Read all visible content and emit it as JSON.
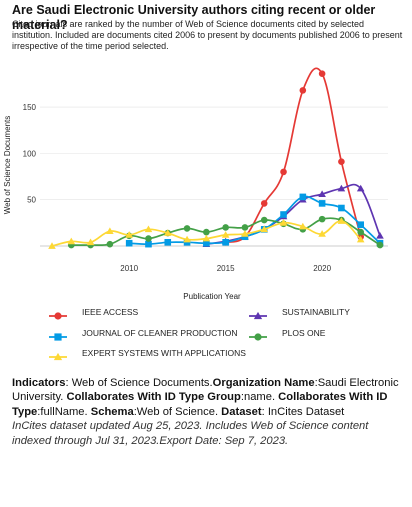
{
  "header": {
    "title": "Are Saudi Electronic University authors citing recent or older material?",
    "subtitle": "Cited journals are ranked by the number of Web of Science documents cited by selected institution. Included are documents cited 2006 to present by documents published 2006 to present irrespective of the time period selected."
  },
  "chart_data": {
    "type": "line",
    "xlabel": "Publication Year",
    "ylabel": "Web of Science Documents",
    "xlim": [
      2006,
      2023
    ],
    "ylim": [
      0,
      190
    ],
    "x_ticks": [
      2010,
      2015,
      2020
    ],
    "y_ticks": [
      50,
      100,
      150
    ],
    "grid": "horizontal",
    "legend_position": "bottom",
    "series": [
      {
        "name": "IEEE ACCESS",
        "color": "#e53935",
        "marker": "circle",
        "points": [
          [
            2015,
            4
          ],
          [
            2016,
            10
          ],
          [
            2017,
            46
          ],
          [
            2018,
            80
          ],
          [
            2019,
            168
          ],
          [
            2020,
            186
          ],
          [
            2021,
            91
          ],
          [
            2022,
            10
          ]
        ]
      },
      {
        "name": "SUSTAINABILITY",
        "color": "#5e35b1",
        "marker": "triangle-up",
        "points": [
          [
            2014,
            2
          ],
          [
            2015,
            5
          ],
          [
            2016,
            10
          ],
          [
            2017,
            18
          ],
          [
            2018,
            32
          ],
          [
            2019,
            50
          ],
          [
            2020,
            56
          ],
          [
            2021,
            62
          ],
          [
            2022,
            62
          ],
          [
            2023,
            11
          ]
        ]
      },
      {
        "name": "JOURNAL OF CLEANER PRODUCTION",
        "color": "#039be5",
        "marker": "square",
        "points": [
          [
            2010,
            3
          ],
          [
            2011,
            2
          ],
          [
            2012,
            4
          ],
          [
            2013,
            4
          ],
          [
            2014,
            3
          ],
          [
            2015,
            4
          ],
          [
            2016,
            10
          ],
          [
            2017,
            18
          ],
          [
            2018,
            34
          ],
          [
            2019,
            53
          ],
          [
            2020,
            46
          ],
          [
            2021,
            41
          ],
          [
            2022,
            23
          ],
          [
            2023,
            3
          ]
        ]
      },
      {
        "name": "PLOS ONE",
        "color": "#43a047",
        "marker": "circle",
        "points": [
          [
            2007,
            1
          ],
          [
            2008,
            1
          ],
          [
            2009,
            2
          ],
          [
            2010,
            11
          ],
          [
            2011,
            8
          ],
          [
            2012,
            14
          ],
          [
            2013,
            19
          ],
          [
            2014,
            15
          ],
          [
            2015,
            20
          ],
          [
            2016,
            20
          ],
          [
            2017,
            28
          ],
          [
            2018,
            24
          ],
          [
            2019,
            18
          ],
          [
            2020,
            29
          ],
          [
            2021,
            28
          ],
          [
            2022,
            15
          ],
          [
            2023,
            1
          ]
        ]
      },
      {
        "name": "EXPERT SYSTEMS WITH APPLICATIONS",
        "color": "#fdd835",
        "marker": "triangle-up",
        "points": [
          [
            2006,
            0
          ],
          [
            2007,
            5
          ],
          [
            2008,
            4
          ],
          [
            2009,
            16
          ],
          [
            2010,
            12
          ],
          [
            2011,
            18
          ],
          [
            2012,
            14
          ],
          [
            2013,
            7
          ],
          [
            2014,
            8
          ],
          [
            2015,
            12
          ],
          [
            2016,
            13
          ],
          [
            2017,
            18
          ],
          [
            2018,
            25
          ],
          [
            2019,
            21
          ],
          [
            2020,
            13
          ],
          [
            2021,
            27
          ],
          [
            2022,
            7
          ]
        ]
      }
    ]
  },
  "meta": {
    "indicators_label": "Indicators",
    "indicators_value": "Web of Science Documents.",
    "org_label": "Organization Name",
    "org_value": "Saudi Electronic University.",
    "collab_group_label": "Collaborates With ID Type Group",
    "collab_group_value": "name.",
    "collab_type_label": "Collaborates With ID Type",
    "collab_type_value": "fullName.",
    "schema_label": "Schema",
    "schema_value": "Web of Science.",
    "dataset_label": "Dataset",
    "dataset_value": "InCites Dataset",
    "footnote": "InCites dataset updated Aug 25, 2023. Includes Web of Science content indexed through Jul 31, 2023.Export Date: Sep 7, 2023."
  }
}
